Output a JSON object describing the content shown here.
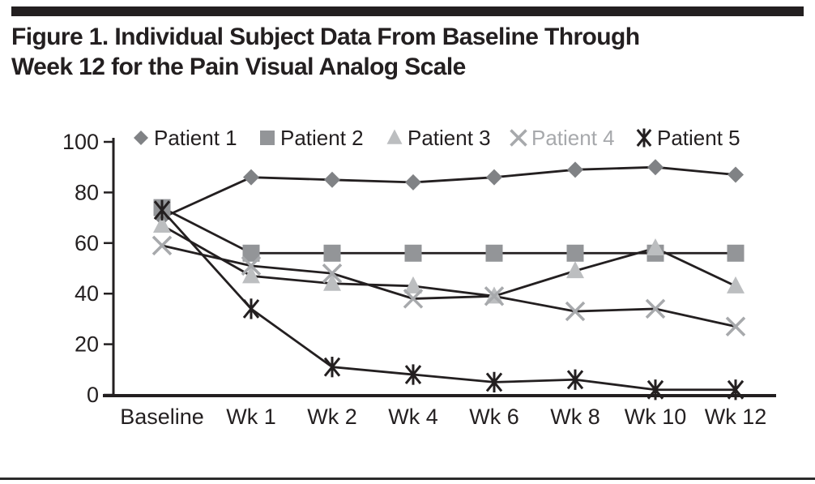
{
  "page": {
    "title_lines": [
      "Figure 1. Individual Subject Data From Baseline Through",
      "Week 12 for the Pain Visual Analog Scale"
    ]
  },
  "chart_data": {
    "type": "line",
    "title": "Figure 1. Individual Subject Data From Baseline Through Week 12 for the Pain Visual Analog Scale",
    "categories": [
      "Baseline",
      "Wk 1",
      "Wk 2",
      "Wk 4",
      "Wk 6",
      "Wk 8",
      "Wk 10",
      "Wk 12"
    ],
    "series": [
      {
        "name": "Patient 1",
        "marker": "diamond",
        "marker_color": "#808285",
        "label_color": "#231f20",
        "values": [
          70,
          86,
          85,
          84,
          86,
          89,
          90,
          87
        ]
      },
      {
        "name": "Patient 2",
        "marker": "square",
        "marker_color": "#939598",
        "label_color": "#231f20",
        "values": [
          74,
          56,
          56,
          56,
          56,
          56,
          56,
          56
        ]
      },
      {
        "name": "Patient 3",
        "marker": "triangle",
        "marker_color": "#bcbec0",
        "label_color": "#231f20",
        "values": [
          67,
          47,
          44,
          43,
          39,
          49,
          58,
          43
        ]
      },
      {
        "name": "Patient 4",
        "marker": "x",
        "marker_color": "#a7a9ac",
        "label_color": "#a7a9ac",
        "values": [
          59,
          51,
          48,
          38,
          39,
          33,
          34,
          27
        ]
      },
      {
        "name": "Patient 5",
        "marker": "asterisk",
        "marker_color": "#231f20",
        "label_color": "#231f20",
        "values": [
          73,
          34,
          11,
          8,
          5,
          6,
          2,
          2
        ]
      }
    ],
    "yticks": [
      0,
      20,
      40,
      60,
      80,
      100
    ],
    "ylim": [
      0,
      100
    ],
    "xlabel": "",
    "ylabel": "",
    "line_color": "#231f20",
    "legend_position": "top",
    "grid": false
  }
}
